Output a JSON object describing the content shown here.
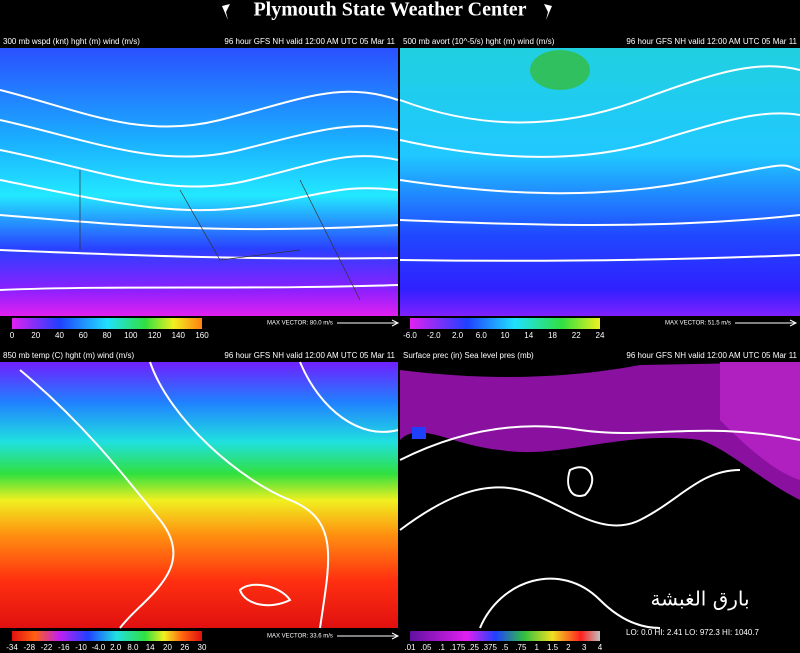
{
  "header": {
    "title": "Plymouth State Weather Center"
  },
  "panels": [
    {
      "left_title": "300 mb wspd (knt) hght (m) wind (m/s)",
      "right_title": "96 hour GFS NH valid 12:00 AM UTC 05 Mar 11",
      "max_vector": "MAX VECTOR: 80.0 m/s",
      "scale_labels": [
        "0",
        "20",
        "40",
        "60",
        "80",
        "100",
        "120",
        "140",
        "160"
      ]
    },
    {
      "left_title": "500 mb avort (10^-5/s) hght (m) wind (m/s)",
      "right_title": "96 hour GFS NH valid 12:00 AM UTC 05 Mar 11",
      "max_vector": "MAX VECTOR: 51.5 m/s",
      "scale_labels": [
        "-6.0",
        "-2.0",
        "2.0",
        "6.0",
        "10",
        "14",
        "18",
        "22",
        "24"
      ]
    },
    {
      "left_title": "850 mb temp (C) hght (m) wind (m/s)",
      "right_title": "96 hour GFS NH valid 12:00 AM UTC 05 Mar 11",
      "max_vector": "MAX VECTOR: 33.6 m/s",
      "scale_labels": [
        "-34",
        "-28",
        "-22",
        "-16",
        "-10",
        "-4.0",
        "2.0",
        "8.0",
        "14",
        "20",
        "26",
        "30"
      ]
    },
    {
      "left_title": "Surface prec (in) Sea level pres (mb)",
      "right_title": "96 hour GFS NH valid 12:00 AM UTC 05 Mar 11",
      "stats": "LO: 0.0  HI: 2.41  LO: 972.3  HI: 1040.7",
      "watermark": "بارق الغبشة",
      "scale_labels": [
        ".01",
        ".05",
        ".1",
        ".175",
        ".25",
        ".375",
        ".5",
        ".75",
        "1",
        "1.5",
        "2",
        "3",
        "4"
      ]
    }
  ]
}
